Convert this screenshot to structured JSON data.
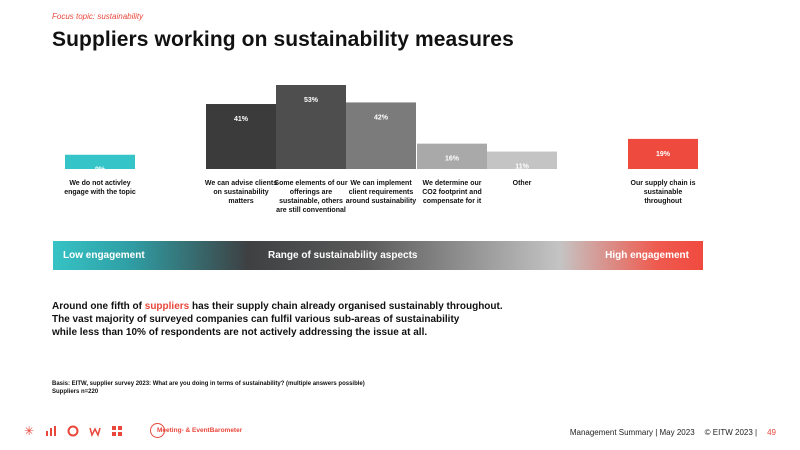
{
  "header": {
    "focus_topic": "Focus topic: sustainability",
    "title": "Suppliers working on sustainability measures"
  },
  "chart_data": {
    "type": "bar",
    "categories": [
      "We do not activley engage with the topic",
      "We can advise clients on sustainability matters",
      "Some elements of our offerings are sustainable, others are still conventional",
      "We can implement client requirements around sustainability",
      "We determine our CO2 footprint and compensate for it",
      "Other",
      "Our supply chain is sustainable throughout"
    ],
    "values": [
      9,
      41,
      53,
      42,
      16,
      11,
      19
    ],
    "value_labels": [
      "9%",
      "41%",
      "53%",
      "42%",
      "16%",
      "11%",
      "19%"
    ],
    "colors": [
      "#35c4c7",
      "#3b3b3b",
      "#4e4e4e",
      "#7b7b7b",
      "#a9a9a9",
      "#c4c4c4",
      "#ee4a3d"
    ],
    "ylim": [
      0,
      60
    ]
  },
  "engagement_bar": {
    "low": "Low engagement",
    "range": "Range of sustainability aspects",
    "high": "High engagement"
  },
  "summary": {
    "line1_pre": "Around one fifth of ",
    "line1_highlight": "suppliers",
    "line1_post": " has their supply chain already organised sustainably throughout.",
    "line2": "The vast majority of surveyed companies can fulfil various sub-areas of sustainability",
    "line3": "while less than 10% of respondents are not actively addressing the issue at all."
  },
  "basis": {
    "line1": "Basis: EITW, supplier survey 2023: What are you doing in terms of sustainability? (multiple answers possible)",
    "line2": "Suppliers n=220"
  },
  "footer": {
    "logo_text": "Meeting- & EventBarometer",
    "source": "Management Summary | May 2023",
    "copyright": "© EITW 2023 |",
    "page": "49",
    "icons": [
      "sun-icon",
      "bar-chart-icon",
      "circle-icon",
      "crown-icon",
      "grid-icon"
    ]
  }
}
